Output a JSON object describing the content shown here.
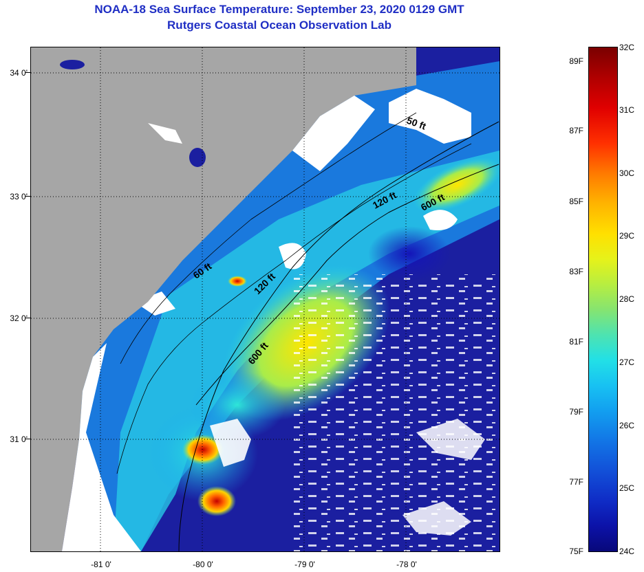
{
  "title": {
    "line1": "NOAA-18 Sea Surface Temperature:  September 23, 2020 0129 GMT",
    "line2": "Rutgers Coastal Ocean Observation Lab"
  },
  "axes": {
    "latitude_labels": [
      "34 0'",
      "33 0'",
      "32 0'",
      "31 0'"
    ],
    "longitude_labels": [
      "-81 0'",
      "-80 0'",
      "-79 0'",
      "-78 0'"
    ]
  },
  "isobath_labels": {
    "a": "50 ft",
    "b": "120 ft",
    "c": "600 ft",
    "d": "60 ft",
    "e": "120 ft",
    "f": "600 ft"
  },
  "colorbar": {
    "fahrenheit": [
      "89F",
      "87F",
      "85F",
      "83F",
      "81F",
      "79F",
      "77F",
      "75F"
    ],
    "celsius": [
      "32C",
      "31C",
      "30C",
      "29C",
      "28C",
      "27C",
      "26C",
      "25C",
      "24C"
    ],
    "range_c": [
      24,
      32
    ],
    "range_f": [
      75,
      89
    ]
  },
  "colors": {
    "title": "#1f2ec4",
    "land": "#a6a6a6",
    "clouds": "#ffffff",
    "cold_water": "#1b1fa0"
  }
}
